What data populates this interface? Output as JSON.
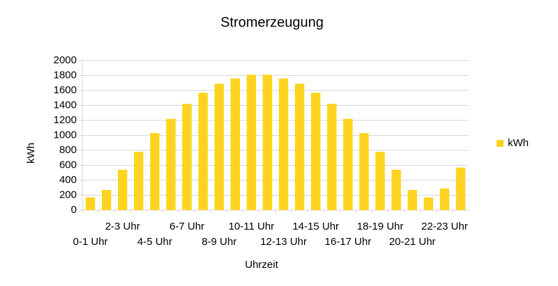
{
  "chart_data": {
    "type": "bar",
    "title": "Stromerzeugung",
    "x_label": "Uhrzeit",
    "y_label": "kWh",
    "categories": [
      "0-1 Uhr",
      null,
      "2-3 Uhr",
      null,
      "4-5 Uhr",
      null,
      "6-7 Uhr",
      null,
      "8-9 Uhr",
      null,
      "10-11 Uhr",
      null,
      "12-13 Uhr",
      null,
      "14-15 Uhr",
      null,
      "16-17 Uhr",
      null,
      "18-19 Uhr",
      null,
      "20-21 Uhr",
      null,
      "22-23 Uhr",
      null
    ],
    "series": [
      {
        "name": "kWh",
        "color": "#ffd320",
        "values": [
          170,
          270,
          540,
          780,
          1030,
          1220,
          1420,
          1570,
          1690,
          1760,
          1810,
          1810,
          1760,
          1690,
          1570,
          1420,
          1220,
          1030,
          780,
          540,
          270,
          170,
          290,
          570
        ]
      }
    ],
    "ylim": [
      0,
      2000
    ],
    "yticks": [
      0,
      200,
      400,
      600,
      800,
      1000,
      1200,
      1400,
      1600,
      1800,
      2000
    ],
    "grid": true,
    "legend": "right"
  }
}
